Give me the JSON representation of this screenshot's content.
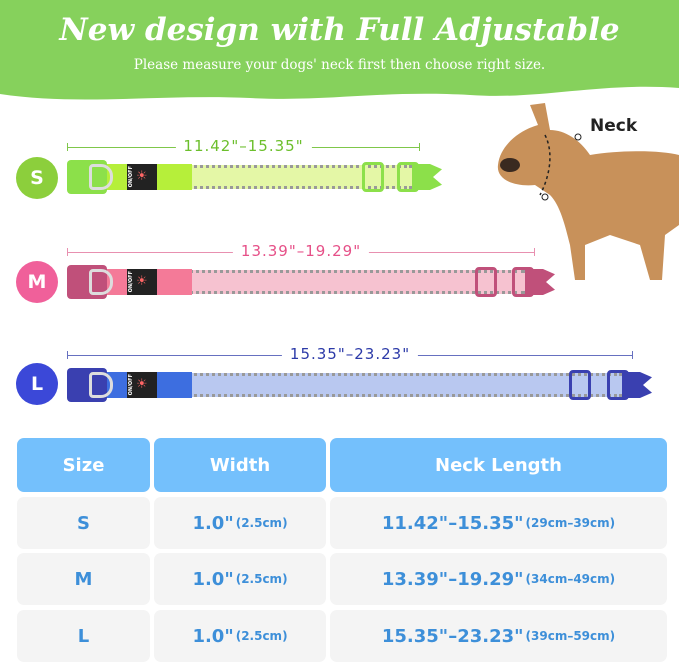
{
  "header": {
    "title": "New design with Full Adjustable",
    "subtitle": "Please measure your dogs' neck first then choose right size.",
    "color": "#86d15c"
  },
  "collars": [
    {
      "size": "S",
      "range": "11.42\"–15.35\"",
      "color": "#8ccf3c",
      "dark": "#8ce04a",
      "light": "#e4f7a6"
    },
    {
      "size": "M",
      "range": "13.39\"–19.29\"",
      "color": "#f0609a",
      "dark": "#c0507a",
      "light": "#f6c2d0"
    },
    {
      "size": "L",
      "range": "15.35\"–23.23\"",
      "color": "#3b48d8",
      "dark": "#3a40b0",
      "light": "#b9c8f0"
    }
  ],
  "switch_label": "ON/OFF",
  "dog": {
    "label": "Neck"
  },
  "table": {
    "headers": [
      "Size",
      "Width",
      "Neck Length"
    ],
    "rows": [
      {
        "size": "S",
        "width": "1.0\"",
        "width_cm": "(2.5cm)",
        "neck": "11.42\"–15.35\"",
        "neck_cm": "(29cm–39cm)"
      },
      {
        "size": "M",
        "width": "1.0\"",
        "width_cm": "(2.5cm)",
        "neck": "13.39\"–19.29\"",
        "neck_cm": "(34cm–49cm)"
      },
      {
        "size": "L",
        "width": "1.0\"",
        "width_cm": "(2.5cm)",
        "neck": "15.35\"–23.23\"",
        "neck_cm": "(39cm–59cm)"
      }
    ]
  }
}
